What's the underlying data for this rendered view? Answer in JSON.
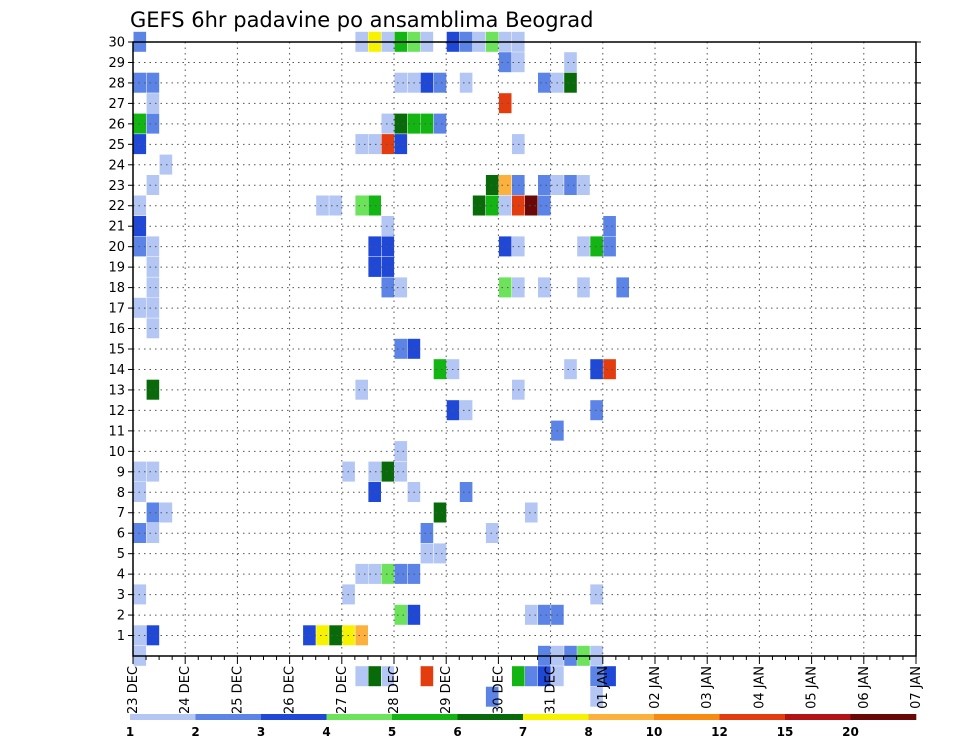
{
  "chart_data": {
    "type": "heatmap",
    "title": "GEFS 6hr padavine po ansamblima Beograd",
    "xlabel": "",
    "ylabel": "",
    "x_ticks": [
      "23 DEC",
      "24 DEC",
      "25 DEC",
      "26 DEC",
      "27 DEC",
      "28 DEC",
      "29 DEC",
      "30 DEC",
      "31 DEC",
      "01 JAN",
      "02 JAN",
      "03 JAN",
      "04 JAN",
      "05 JAN",
      "06 JAN",
      "07 JAN"
    ],
    "y_ticks": [
      1,
      2,
      3,
      4,
      5,
      6,
      7,
      8,
      9,
      10,
      11,
      12,
      13,
      14,
      15,
      16,
      17,
      18,
      19,
      20,
      21,
      22,
      23,
      24,
      25,
      26,
      27,
      28,
      29,
      30
    ],
    "xlim_steps": [
      0,
      60
    ],
    "ylim": [
      0,
      30
    ],
    "grid": true,
    "colorbar": {
      "ticks": [
        "1",
        "2",
        "3",
        "4",
        "5",
        "6",
        "7",
        "8",
        "10",
        "12",
        "15",
        "20"
      ],
      "colors": [
        "#b3c6f4",
        "#5b84e6",
        "#1f48d6",
        "#6ce35a",
        "#12b512",
        "#086a08",
        "#f7f300",
        "#fbb13b",
        "#f98a11",
        "#e33d0f",
        "#b31313",
        "#6a0808"
      ]
    },
    "cells": [
      [
        0,
        30,
        1
      ],
      [
        17,
        30,
        0
      ],
      [
        18,
        30,
        6
      ],
      [
        19,
        30,
        0
      ],
      [
        20,
        30,
        4
      ],
      [
        21,
        30,
        3
      ],
      [
        22,
        30,
        0
      ],
      [
        24,
        30,
        2
      ],
      [
        25,
        30,
        1
      ],
      [
        26,
        30,
        0
      ],
      [
        27,
        30,
        3
      ],
      [
        28,
        30,
        0
      ],
      [
        29,
        30,
        0
      ],
      [
        28,
        29,
        1
      ],
      [
        29,
        29,
        0
      ],
      [
        33,
        29,
        0
      ],
      [
        0,
        28,
        1
      ],
      [
        1,
        28,
        1
      ],
      [
        20,
        28,
        0
      ],
      [
        21,
        28,
        0
      ],
      [
        22,
        28,
        2
      ],
      [
        23,
        28,
        1
      ],
      [
        25,
        28,
        0
      ],
      [
        31,
        28,
        1
      ],
      [
        32,
        28,
        0
      ],
      [
        33,
        28,
        5
      ],
      [
        1,
        27,
        0
      ],
      [
        28,
        27,
        9
      ],
      [
        0,
        26,
        4
      ],
      [
        1,
        26,
        1
      ],
      [
        19,
        26,
        0
      ],
      [
        20,
        26,
        5
      ],
      [
        21,
        26,
        4
      ],
      [
        22,
        26,
        4
      ],
      [
        23,
        26,
        1
      ],
      [
        0,
        25,
        2
      ],
      [
        17,
        25,
        0
      ],
      [
        18,
        25,
        0
      ],
      [
        19,
        25,
        9
      ],
      [
        20,
        25,
        2
      ],
      [
        29,
        25,
        0
      ],
      [
        2,
        24,
        0
      ],
      [
        1,
        23,
        0
      ],
      [
        27,
        23,
        5
      ],
      [
        28,
        23,
        7
      ],
      [
        29,
        23,
        1
      ],
      [
        31,
        23,
        1
      ],
      [
        32,
        23,
        0
      ],
      [
        33,
        23,
        1
      ],
      [
        34,
        23,
        0
      ],
      [
        0,
        22,
        0
      ],
      [
        14,
        22,
        0
      ],
      [
        15,
        22,
        0
      ],
      [
        17,
        22,
        3
      ],
      [
        18,
        22,
        4
      ],
      [
        26,
        22,
        5
      ],
      [
        27,
        22,
        4
      ],
      [
        28,
        22,
        0
      ],
      [
        29,
        22,
        9
      ],
      [
        30,
        22,
        11
      ],
      [
        31,
        22,
        1
      ],
      [
        0,
        21,
        2
      ],
      [
        19,
        21,
        0
      ],
      [
        36,
        21,
        1
      ],
      [
        0,
        20,
        1
      ],
      [
        1,
        20,
        0
      ],
      [
        18,
        20,
        2
      ],
      [
        19,
        20,
        2
      ],
      [
        28,
        20,
        2
      ],
      [
        29,
        20,
        0
      ],
      [
        34,
        20,
        0
      ],
      [
        35,
        20,
        4
      ],
      [
        36,
        20,
        1
      ],
      [
        1,
        19,
        0
      ],
      [
        18,
        19,
        2
      ],
      [
        19,
        19,
        2
      ],
      [
        1,
        18,
        0
      ],
      [
        19,
        18,
        1
      ],
      [
        20,
        18,
        0
      ],
      [
        28,
        18,
        3
      ],
      [
        29,
        18,
        0
      ],
      [
        31,
        18,
        0
      ],
      [
        34,
        18,
        0
      ],
      [
        37,
        18,
        1
      ],
      [
        0,
        17,
        0
      ],
      [
        1,
        17,
        0
      ],
      [
        1,
        16,
        0
      ],
      [
        20,
        15,
        1
      ],
      [
        21,
        15,
        2
      ],
      [
        23,
        14,
        4
      ],
      [
        24,
        14,
        0
      ],
      [
        33,
        14,
        0
      ],
      [
        35,
        14,
        2
      ],
      [
        36,
        14,
        9
      ],
      [
        1,
        13,
        5
      ],
      [
        17,
        13,
        0
      ],
      [
        29,
        13,
        0
      ],
      [
        24,
        12,
        2
      ],
      [
        25,
        12,
        0
      ],
      [
        35,
        12,
        1
      ],
      [
        32,
        11,
        1
      ],
      [
        20,
        10,
        0
      ],
      [
        0,
        9,
        0
      ],
      [
        1,
        9,
        0
      ],
      [
        16,
        9,
        0
      ],
      [
        18,
        9,
        0
      ],
      [
        19,
        9,
        5
      ],
      [
        20,
        9,
        0
      ],
      [
        0,
        8,
        0
      ],
      [
        18,
        8,
        2
      ],
      [
        21,
        8,
        0
      ],
      [
        25,
        8,
        1
      ],
      [
        1,
        7,
        1
      ],
      [
        2,
        7,
        0
      ],
      [
        23,
        7,
        5
      ],
      [
        30,
        7,
        0
      ],
      [
        0,
        6,
        1
      ],
      [
        1,
        6,
        0
      ],
      [
        22,
        6,
        1
      ],
      [
        27,
        6,
        0
      ],
      [
        22,
        5,
        0
      ],
      [
        23,
        5,
        0
      ],
      [
        17,
        4,
        0
      ],
      [
        18,
        4,
        0
      ],
      [
        19,
        4,
        3
      ],
      [
        20,
        4,
        1
      ],
      [
        21,
        4,
        1
      ],
      [
        0,
        3,
        0
      ],
      [
        16,
        3,
        0
      ],
      [
        35,
        3,
        0
      ],
      [
        20,
        2,
        3
      ],
      [
        21,
        2,
        2
      ],
      [
        30,
        2,
        0
      ],
      [
        31,
        2,
        1
      ],
      [
        32,
        2,
        1
      ],
      [
        0,
        1,
        0
      ],
      [
        1,
        1,
        2
      ],
      [
        13,
        1,
        2
      ],
      [
        14,
        1,
        6
      ],
      [
        15,
        1,
        5
      ],
      [
        16,
        1,
        6
      ],
      [
        17,
        1,
        7
      ],
      [
        0,
        0,
        0
      ],
      [
        31,
        0,
        1
      ],
      [
        32,
        0,
        0
      ],
      [
        33,
        0,
        1
      ],
      [
        34,
        0,
        3
      ],
      [
        35,
        0,
        0
      ],
      [
        17,
        -1,
        0
      ],
      [
        18,
        -1,
        5
      ],
      [
        19,
        -1,
        0
      ],
      [
        22,
        -1,
        9
      ],
      [
        29,
        -1,
        4
      ],
      [
        30,
        -1,
        1
      ],
      [
        31,
        -1,
        2
      ],
      [
        32,
        -1,
        0
      ],
      [
        35,
        -1,
        1
      ],
      [
        36,
        -1,
        2
      ],
      [
        27,
        -2,
        1
      ],
      [
        35,
        -2,
        0
      ]
    ]
  }
}
